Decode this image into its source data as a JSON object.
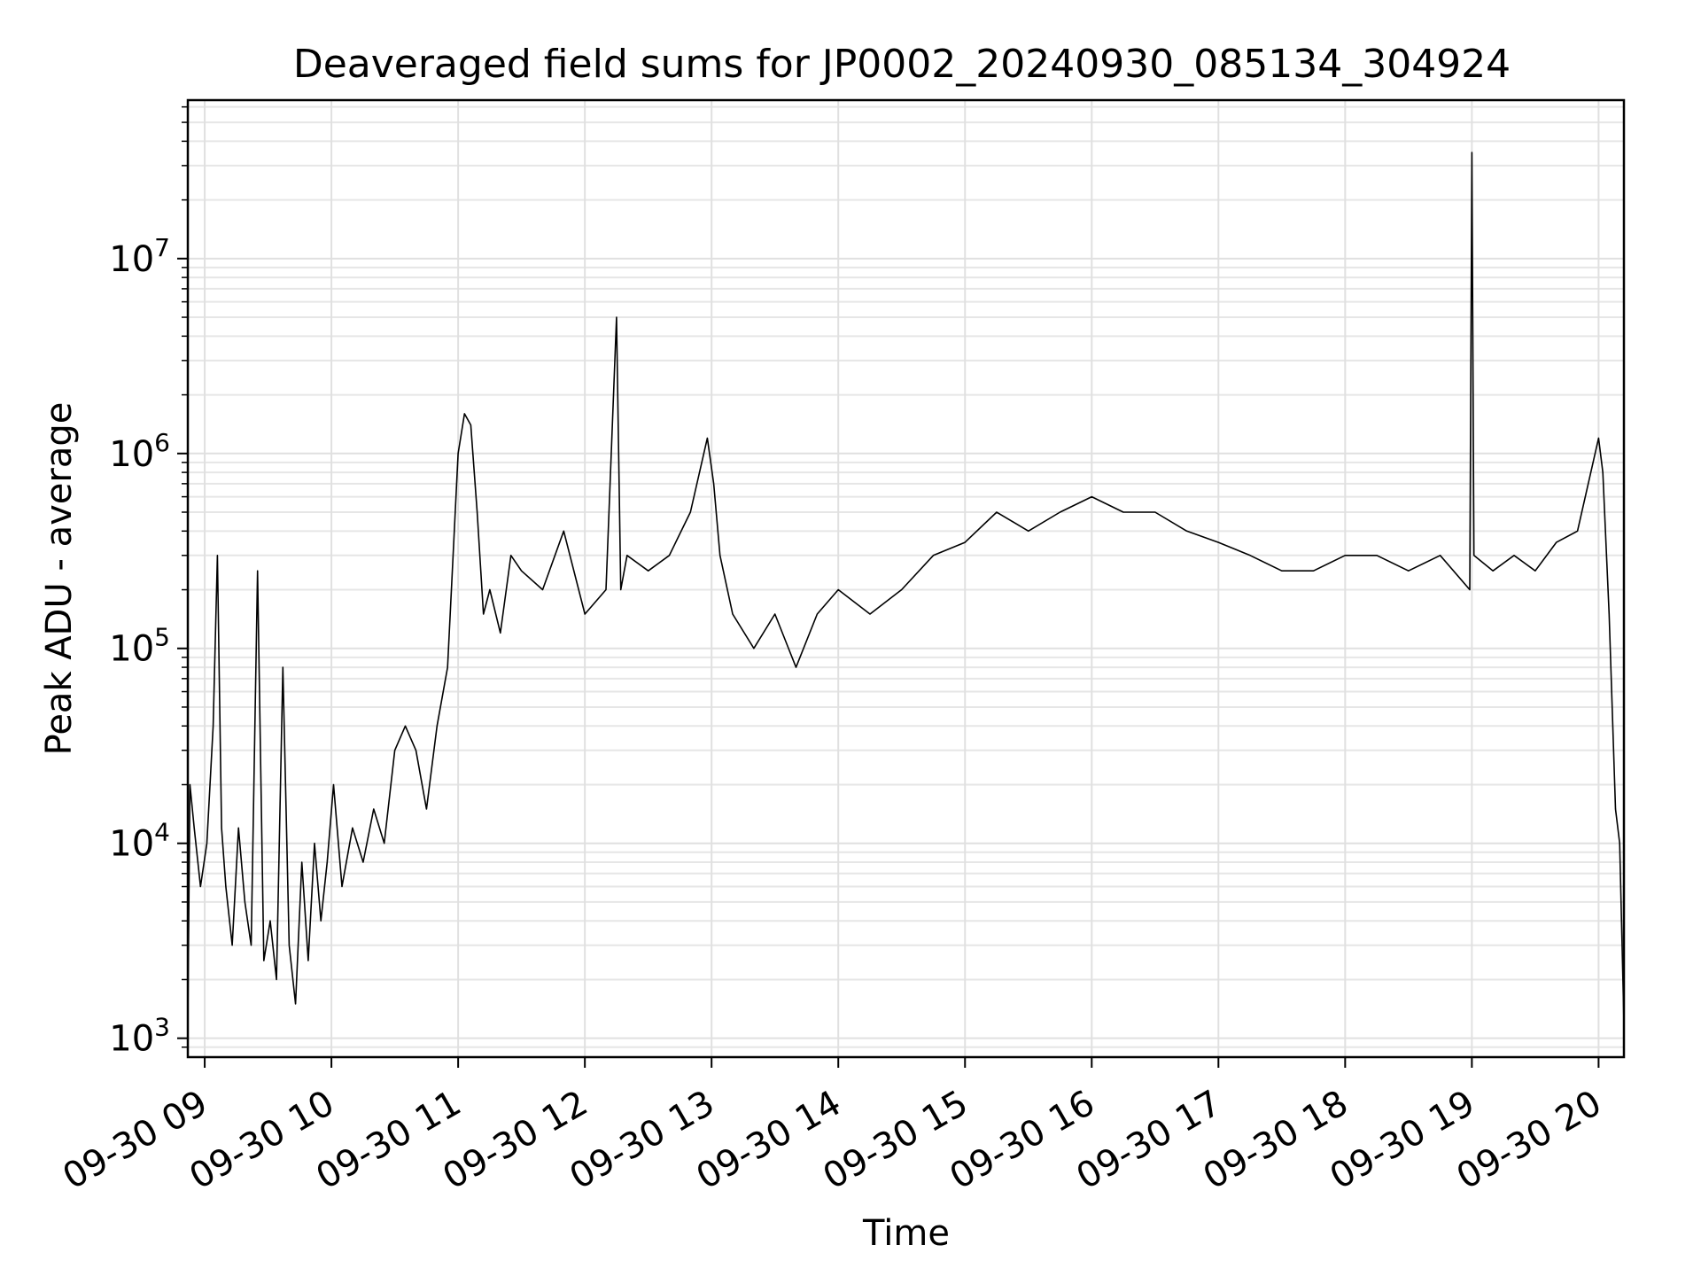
{
  "chart_data": {
    "type": "line",
    "title": "Deaveraged field sums for JP0002_20240930_085134_304924",
    "xlabel": "Time",
    "ylabel": "Peak ADU - average",
    "y_scale": "log",
    "ylim": [
      800,
      65000000
    ],
    "xlim": [
      "2024-09-30 08:52",
      "2024-09-30 20:12"
    ],
    "grid": true,
    "line_color": "#000000",
    "x_ticks": [
      {
        "at": "2024-09-30 09:00",
        "label": "09-30 09"
      },
      {
        "at": "2024-09-30 10:00",
        "label": "09-30 10"
      },
      {
        "at": "2024-09-30 11:00",
        "label": "09-30 11"
      },
      {
        "at": "2024-09-30 12:00",
        "label": "09-30 12"
      },
      {
        "at": "2024-09-30 13:00",
        "label": "09-30 13"
      },
      {
        "at": "2024-09-30 14:00",
        "label": "09-30 14"
      },
      {
        "at": "2024-09-30 15:00",
        "label": "09-30 15"
      },
      {
        "at": "2024-09-30 16:00",
        "label": "09-30 16"
      },
      {
        "at": "2024-09-30 17:00",
        "label": "09-30 17"
      },
      {
        "at": "2024-09-30 18:00",
        "label": "09-30 18"
      },
      {
        "at": "2024-09-30 19:00",
        "label": "09-30 19"
      },
      {
        "at": "2024-09-30 20:00",
        "label": "09-30 20"
      }
    ],
    "y_ticks": [
      {
        "value": 1000,
        "base": "10",
        "exp": "3"
      },
      {
        "value": 10000,
        "base": "10",
        "exp": "4"
      },
      {
        "value": 100000,
        "base": "10",
        "exp": "5"
      },
      {
        "value": 1000000,
        "base": "10",
        "exp": "6"
      },
      {
        "value": 10000000,
        "base": "10",
        "exp": "7"
      }
    ],
    "series": [
      {
        "x": [
          "2024-09-30 08:52",
          "2024-09-30 08:53",
          "2024-09-30 08:55",
          "2024-09-30 08:58",
          "2024-09-30 09:01",
          "2024-09-30 09:04",
          "2024-09-30 09:06",
          "2024-09-30 09:08",
          "2024-09-30 09:10",
          "2024-09-30 09:13",
          "2024-09-30 09:16",
          "2024-09-30 09:19",
          "2024-09-30 09:22",
          "2024-09-30 09:25",
          "2024-09-30 09:28",
          "2024-09-30 09:31",
          "2024-09-30 09:34",
          "2024-09-30 09:37",
          "2024-09-30 09:40",
          "2024-09-30 09:43",
          "2024-09-30 09:46",
          "2024-09-30 09:49",
          "2024-09-30 09:52",
          "2024-09-30 09:55",
          "2024-09-30 09:58",
          "2024-09-30 10:01",
          "2024-09-30 10:05",
          "2024-09-30 10:10",
          "2024-09-30 10:15",
          "2024-09-30 10:20",
          "2024-09-30 10:25",
          "2024-09-30 10:30",
          "2024-09-30 10:35",
          "2024-09-30 10:40",
          "2024-09-30 10:45",
          "2024-09-30 10:50",
          "2024-09-30 10:55",
          "2024-09-30 11:00",
          "2024-09-30 11:03",
          "2024-09-30 11:06",
          "2024-09-30 11:09",
          "2024-09-30 11:12",
          "2024-09-30 11:15",
          "2024-09-30 11:20",
          "2024-09-30 11:25",
          "2024-09-30 11:30",
          "2024-09-30 11:40",
          "2024-09-30 11:50",
          "2024-09-30 12:00",
          "2024-09-30 12:10",
          "2024-09-30 12:15",
          "2024-09-30 12:17",
          "2024-09-30 12:20",
          "2024-09-30 12:30",
          "2024-09-30 12:40",
          "2024-09-30 12:50",
          "2024-09-30 12:58",
          "2024-09-30 13:01",
          "2024-09-30 13:04",
          "2024-09-30 13:10",
          "2024-09-30 13:20",
          "2024-09-30 13:30",
          "2024-09-30 13:40",
          "2024-09-30 13:50",
          "2024-09-30 14:00",
          "2024-09-30 14:15",
          "2024-09-30 14:30",
          "2024-09-30 14:45",
          "2024-09-30 15:00",
          "2024-09-30 15:15",
          "2024-09-30 15:30",
          "2024-09-30 15:45",
          "2024-09-30 16:00",
          "2024-09-30 16:15",
          "2024-09-30 16:30",
          "2024-09-30 16:45",
          "2024-09-30 17:00",
          "2024-09-30 17:15",
          "2024-09-30 17:30",
          "2024-09-30 17:45",
          "2024-09-30 18:00",
          "2024-09-30 18:15",
          "2024-09-30 18:30",
          "2024-09-30 18:45",
          "2024-09-30 18:59",
          "2024-09-30 19:00",
          "2024-09-30 19:01",
          "2024-09-30 19:10",
          "2024-09-30 19:20",
          "2024-09-30 19:30",
          "2024-09-30 19:40",
          "2024-09-30 19:50",
          "2024-09-30 20:00",
          "2024-09-30 20:02",
          "2024-09-30 20:05",
          "2024-09-30 20:08",
          "2024-09-30 20:10",
          "2024-09-30 20:12"
        ],
        "y": [
          1200,
          20000,
          12000,
          6000,
          10000,
          40000,
          300000,
          12000,
          6000,
          3000,
          12000,
          5000,
          3000,
          250000,
          2500,
          4000,
          2000,
          80000,
          3000,
          1500,
          8000,
          2500,
          10000,
          4000,
          8000,
          20000,
          6000,
          12000,
          8000,
          15000,
          10000,
          30000,
          40000,
          30000,
          15000,
          40000,
          80000,
          1000000,
          1600000,
          1400000,
          500000,
          150000,
          200000,
          120000,
          300000,
          250000,
          200000,
          400000,
          150000,
          200000,
          5000000,
          200000,
          300000,
          250000,
          300000,
          500000,
          1200000,
          700000,
          300000,
          150000,
          100000,
          150000,
          80000,
          150000,
          200000,
          150000,
          200000,
          300000,
          350000,
          500000,
          400000,
          500000,
          600000,
          500000,
          500000,
          400000,
          350000,
          300000,
          250000,
          250000,
          300000,
          300000,
          250000,
          300000,
          200000,
          35000000,
          300000,
          250000,
          300000,
          250000,
          350000,
          400000,
          1200000,
          800000,
          150000,
          15000,
          10000,
          1200
        ]
      }
    ]
  }
}
